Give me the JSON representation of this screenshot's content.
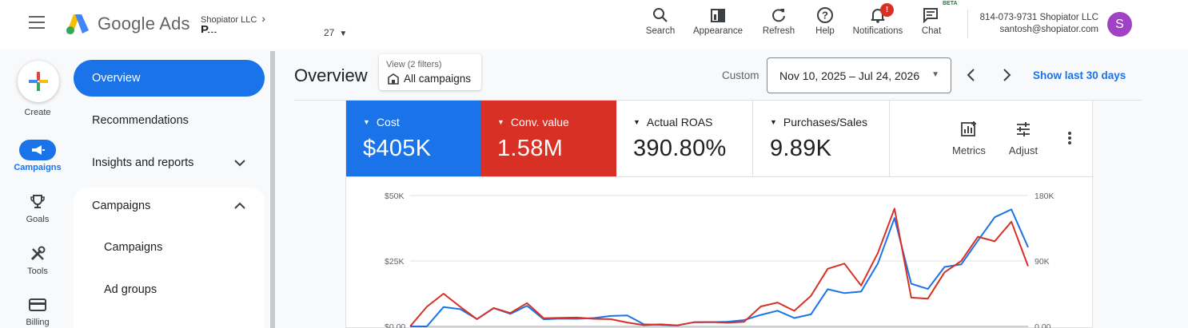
{
  "app": {
    "brand": "Google Ads",
    "account_parent": "Shopiator LLC",
    "account_name": "P...",
    "account_id_suffix": "27"
  },
  "header_tools": [
    {
      "label": "Search",
      "icon": "search-icon"
    },
    {
      "label": "Appearance",
      "icon": "appearance-icon"
    },
    {
      "label": "Refresh",
      "icon": "refresh-icon"
    },
    {
      "label": "Help",
      "icon": "help-icon"
    },
    {
      "label": "Notifications",
      "icon": "bell-icon",
      "badge": "!"
    },
    {
      "label": "Chat",
      "icon": "chat-icon",
      "tag": "BETA"
    }
  ],
  "user": {
    "line1": "814-073-9731 Shopiator LLC",
    "email": "santosh@shopiator.com",
    "avatar_letter": "S",
    "avatar_color": "#a142c5"
  },
  "rail": [
    {
      "label": "Create",
      "icon": "plus-icon"
    },
    {
      "label": "Campaigns",
      "icon": "megaphone-icon",
      "active": true
    },
    {
      "label": "Goals",
      "icon": "trophy-icon"
    },
    {
      "label": "Tools",
      "icon": "tools-icon"
    },
    {
      "label": "Billing",
      "icon": "billing-icon"
    }
  ],
  "nav": {
    "overview": "Overview",
    "recommendations": "Recommendations",
    "insights": "Insights and reports",
    "campaigns_group": "Campaigns",
    "sub_campaigns": "Campaigns",
    "sub_ad_groups": "Ad groups"
  },
  "main": {
    "title": "Overview",
    "view_filter_label": "View (2 filters)",
    "view_filter_value": "All campaigns",
    "date_mode": "Custom",
    "date_range": "Nov 10, 2025 – Jul 24, 2026",
    "show_last": "Show last 30 days"
  },
  "metrics": [
    {
      "name": "Cost",
      "value": "$405K",
      "color": "#1a73e8"
    },
    {
      "name": "Conv. value",
      "value": "1.58M",
      "color": "#d93025"
    },
    {
      "name": "Actual ROAS",
      "value": "390.80%"
    },
    {
      "name": "Purchases/Sales",
      "value": "9.89K"
    }
  ],
  "metric_tools": {
    "metrics_label": "Metrics",
    "adjust_label": "Adjust"
  },
  "chart_data": {
    "type": "line",
    "y_left": {
      "ticks": [
        "$50K",
        "$25K",
        "$0.00"
      ],
      "range": [
        0,
        50000
      ]
    },
    "y_right": {
      "ticks": [
        "180K",
        "90K",
        "0.00"
      ],
      "range": [
        0,
        180000
      ]
    },
    "grid": true,
    "series": [
      {
        "axis": "left",
        "color": "#1a73e8",
        "values": [
          0,
          0,
          7400,
          6600,
          2800,
          7000,
          4800,
          7900,
          2700,
          3000,
          2900,
          3200,
          4000,
          4200,
          800,
          600,
          400,
          1600,
          1600,
          1800,
          2400,
          4400,
          6000,
          3200,
          4600,
          14200,
          12700,
          13300,
          24000,
          41400,
          16300,
          14300,
          22700,
          23700,
          32800,
          41700,
          44700,
          30200
        ]
      },
      {
        "axis": "right",
        "color": "#d93025",
        "values": [
          0,
          27000,
          45000,
          27000,
          10000,
          25200,
          18400,
          32000,
          11200,
          11800,
          12200,
          10400,
          10000,
          5400,
          1800,
          2800,
          1400,
          5800,
          6000,
          5000,
          6400,
          27400,
          32800,
          21400,
          42000,
          79200,
          86400,
          56200,
          100800,
          162000,
          39600,
          38200,
          74400,
          90000,
          123400,
          117000,
          144000,
          82800
        ]
      }
    ]
  }
}
